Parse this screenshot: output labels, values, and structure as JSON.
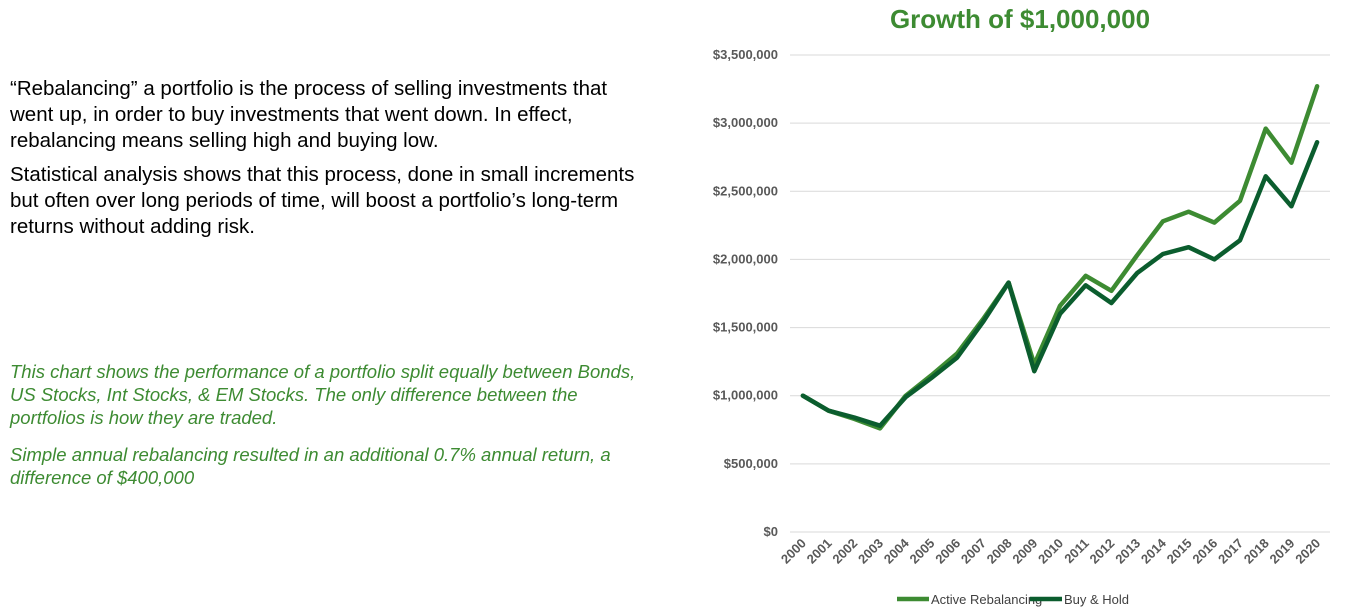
{
  "text": {
    "para1": "“Rebalancing” a portfolio is the process of selling investments that went up, in order to buy investments that went down.  In effect, rebalancing means selling high and buying low.",
    "para2": "Statistical analysis shows that this process, done in small increments but often over long periods of time, will boost a portfolio’s long-term returns without adding risk.",
    "note1": "This chart shows the performance of a portfolio split equally between Bonds, US Stocks, Int Stocks, & EM Stocks.  The only difference between the portfolios is how they are traded.",
    "note2": "Simple annual rebalancing resulted in an additional 0.7% annual return, a difference of $400,000"
  },
  "colors": {
    "active": "#3d8b32",
    "buyhold": "#0b5d2e",
    "grid": "#d9d9d9",
    "title": "#3d8b32"
  },
  "chart_data": {
    "type": "line",
    "title": "Growth of $1,000,000",
    "xlabel": "",
    "ylabel": "",
    "ylim": [
      0,
      3500000
    ],
    "yticks": [
      0,
      500000,
      1000000,
      1500000,
      2000000,
      2500000,
      3000000,
      3500000
    ],
    "ytick_labels": [
      "$0",
      "$500,000",
      "$1,000,000",
      "$1,500,000",
      "$2,000,000",
      "$2,500,000",
      "$3,000,000",
      "$3,500,000"
    ],
    "grid": true,
    "legend": "bottom",
    "categories": [
      "2000",
      "2001",
      "2002",
      "2003",
      "2004",
      "2005",
      "2006",
      "2007",
      "2008",
      "2009",
      "2010",
      "2011",
      "2012",
      "2013",
      "2014",
      "2015",
      "2016",
      "2017",
      "2018",
      "2019",
      "2020"
    ],
    "series": [
      {
        "name": "Active Rebalancing",
        "values": [
          1000000,
          890000,
          830000,
          760000,
          1000000,
          1150000,
          1310000,
          1560000,
          1830000,
          1230000,
          1660000,
          1880000,
          1770000,
          2030000,
          2280000,
          2350000,
          2270000,
          2430000,
          2960000,
          2710000,
          3270000
        ]
      },
      {
        "name": "Buy & Hold",
        "values": [
          1000000,
          890000,
          840000,
          780000,
          990000,
          1130000,
          1280000,
          1540000,
          1830000,
          1180000,
          1600000,
          1810000,
          1680000,
          1900000,
          2040000,
          2090000,
          2000000,
          2140000,
          2610000,
          2390000,
          2860000
        ]
      }
    ]
  }
}
